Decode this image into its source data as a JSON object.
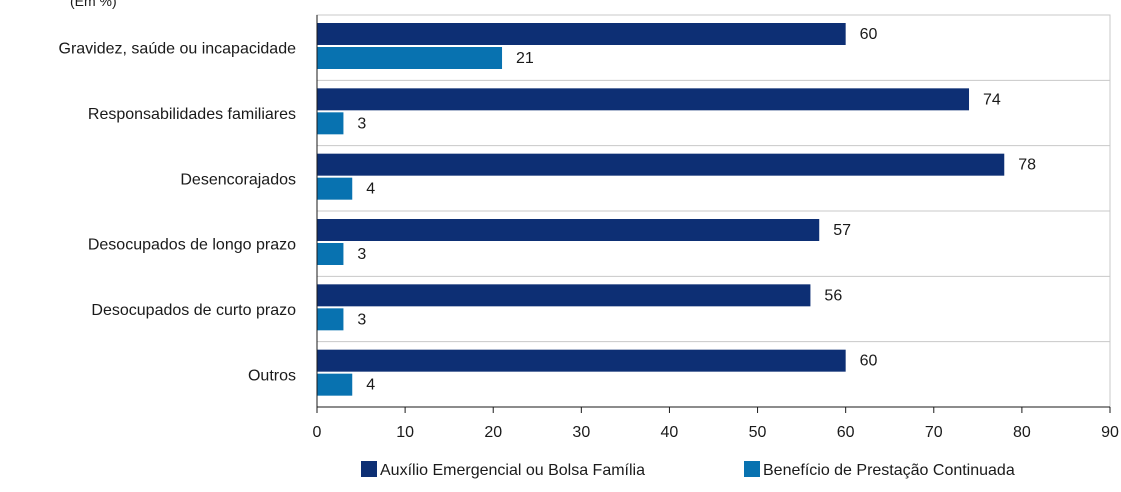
{
  "chart_data": {
    "type": "bar",
    "orientation": "horizontal",
    "subtitle": "(Em %)",
    "categories": [
      "Gravidez, saúde ou incapacidade",
      "Responsabilidades familiares",
      "Desencorajados",
      "Desocupados de longo prazo",
      "Desocupados de curto prazo",
      "Outros"
    ],
    "series": [
      {
        "name": "Auxílio Emergencial ou Bolsa Família",
        "color": "#0d2f74",
        "values": [
          60,
          74,
          78,
          57,
          56,
          60
        ]
      },
      {
        "name": "Benefício de Prestação Continuada",
        "color": "#0872b0",
        "values": [
          21,
          3,
          4,
          3,
          3,
          4
        ]
      }
    ],
    "xlim": [
      0,
      90
    ],
    "xticks": [
      0,
      10,
      20,
      30,
      40,
      50,
      60,
      70,
      80,
      90
    ],
    "grid": "horizontal separators between categories",
    "legend": "bottom"
  }
}
